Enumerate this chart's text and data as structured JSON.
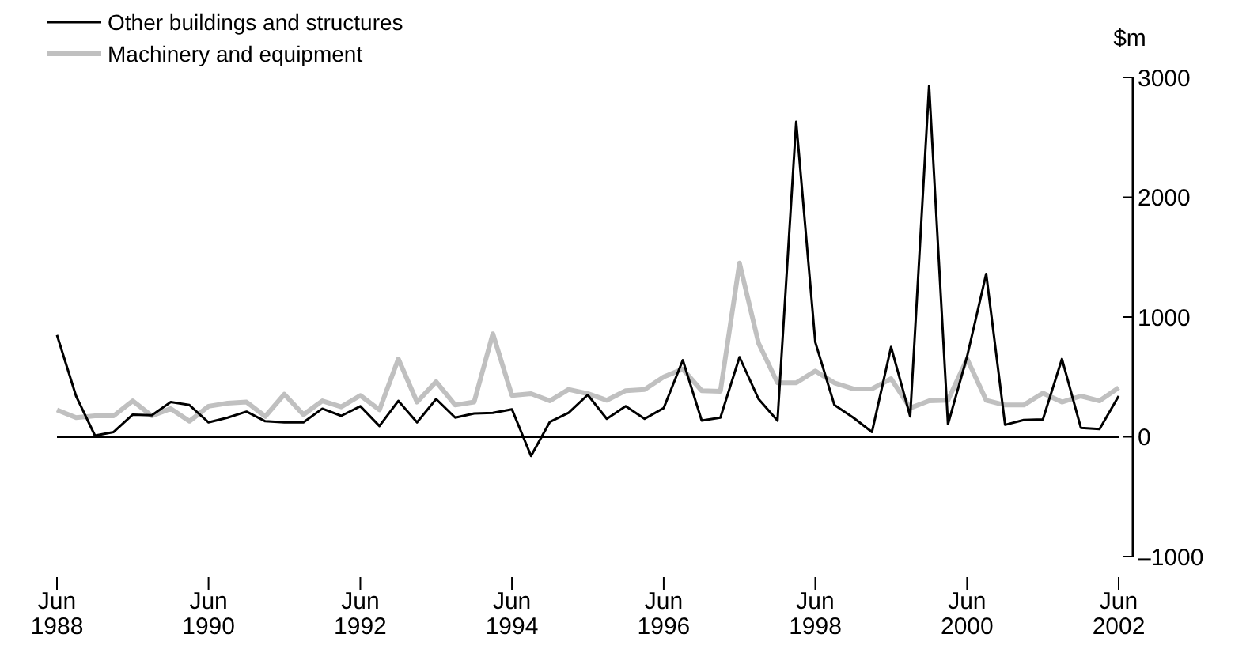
{
  "chart_data": {
    "type": "line",
    "ylabel": "$m",
    "x": [
      "1988-06",
      "1988-09",
      "1988-12",
      "1989-03",
      "1989-06",
      "1989-09",
      "1989-12",
      "1990-03",
      "1990-06",
      "1990-09",
      "1990-12",
      "1991-03",
      "1991-06",
      "1991-09",
      "1991-12",
      "1992-03",
      "1992-06",
      "1992-09",
      "1992-12",
      "1993-03",
      "1993-06",
      "1993-09",
      "1993-12",
      "1994-03",
      "1994-06",
      "1994-09",
      "1994-12",
      "1995-03",
      "1995-06",
      "1995-09",
      "1995-12",
      "1996-03",
      "1996-06",
      "1996-09",
      "1996-12",
      "1997-03",
      "1997-06",
      "1997-09",
      "1997-12",
      "1998-03",
      "1998-06",
      "1998-09",
      "1998-12",
      "1999-03",
      "1999-06",
      "1999-09",
      "1999-12",
      "2000-03",
      "2000-06",
      "2000-09",
      "2000-12",
      "2001-03",
      "2001-06",
      "2001-09",
      "2001-12",
      "2002-03",
      "2002-06"
    ],
    "series": [
      {
        "name": "Other buildings and structures",
        "color": "#000000",
        "values": [
          850,
          340,
          10,
          40,
          185,
          180,
          290,
          265,
          120,
          160,
          210,
          130,
          120,
          120,
          235,
          175,
          255,
          90,
          300,
          120,
          315,
          160,
          195,
          200,
          230,
          -160,
          125,
          200,
          350,
          150,
          255,
          150,
          240,
          640,
          135,
          160,
          665,
          315,
          135,
          2630,
          790,
          265,
          160,
          40,
          750,
          170,
          2930,
          105,
          670,
          1360,
          100,
          140,
          145,
          650,
          75,
          65,
          340
        ]
      },
      {
        "name": "Machinery and equipment",
        "color": "#c0c0c0",
        "values": [
          225,
          160,
          175,
          175,
          300,
          175,
          235,
          130,
          255,
          280,
          290,
          170,
          355,
          185,
          300,
          250,
          345,
          225,
          650,
          290,
          460,
          265,
          290,
          860,
          345,
          360,
          300,
          395,
          360,
          305,
          385,
          395,
          500,
          565,
          385,
          380,
          1450,
          780,
          450,
          450,
          550,
          450,
          400,
          400,
          485,
          240,
          300,
          305,
          650,
          305,
          265,
          265,
          365,
          290,
          340,
          300,
          410
        ]
      }
    ],
    "xlim": [
      "1988-06",
      "2002-06"
    ],
    "xticks": [
      {
        "value": "1988-06",
        "label": "Jun 1988"
      },
      {
        "value": "1990-06",
        "label": "Jun 1990"
      },
      {
        "value": "1992-06",
        "label": "Jun 1992"
      },
      {
        "value": "1994-06",
        "label": "Jun 1994"
      },
      {
        "value": "1996-06",
        "label": "Jun 1996"
      },
      {
        "value": "1998-06",
        "label": "Jun 1998"
      },
      {
        "value": "2000-06",
        "label": "Jun 2000"
      },
      {
        "value": "2002-06",
        "label": "Jun 2002"
      }
    ],
    "ylim": [
      -1000,
      3000
    ],
    "yticks": [
      {
        "value": -1000,
        "label": "–1000"
      },
      0,
      1000,
      2000,
      3000
    ],
    "ref_lines": [
      {
        "axis": "y",
        "value": 0,
        "color": "#000000"
      }
    ],
    "legend": "top left",
    "grid": false,
    "marker": "none",
    "line_style": "solid"
  }
}
